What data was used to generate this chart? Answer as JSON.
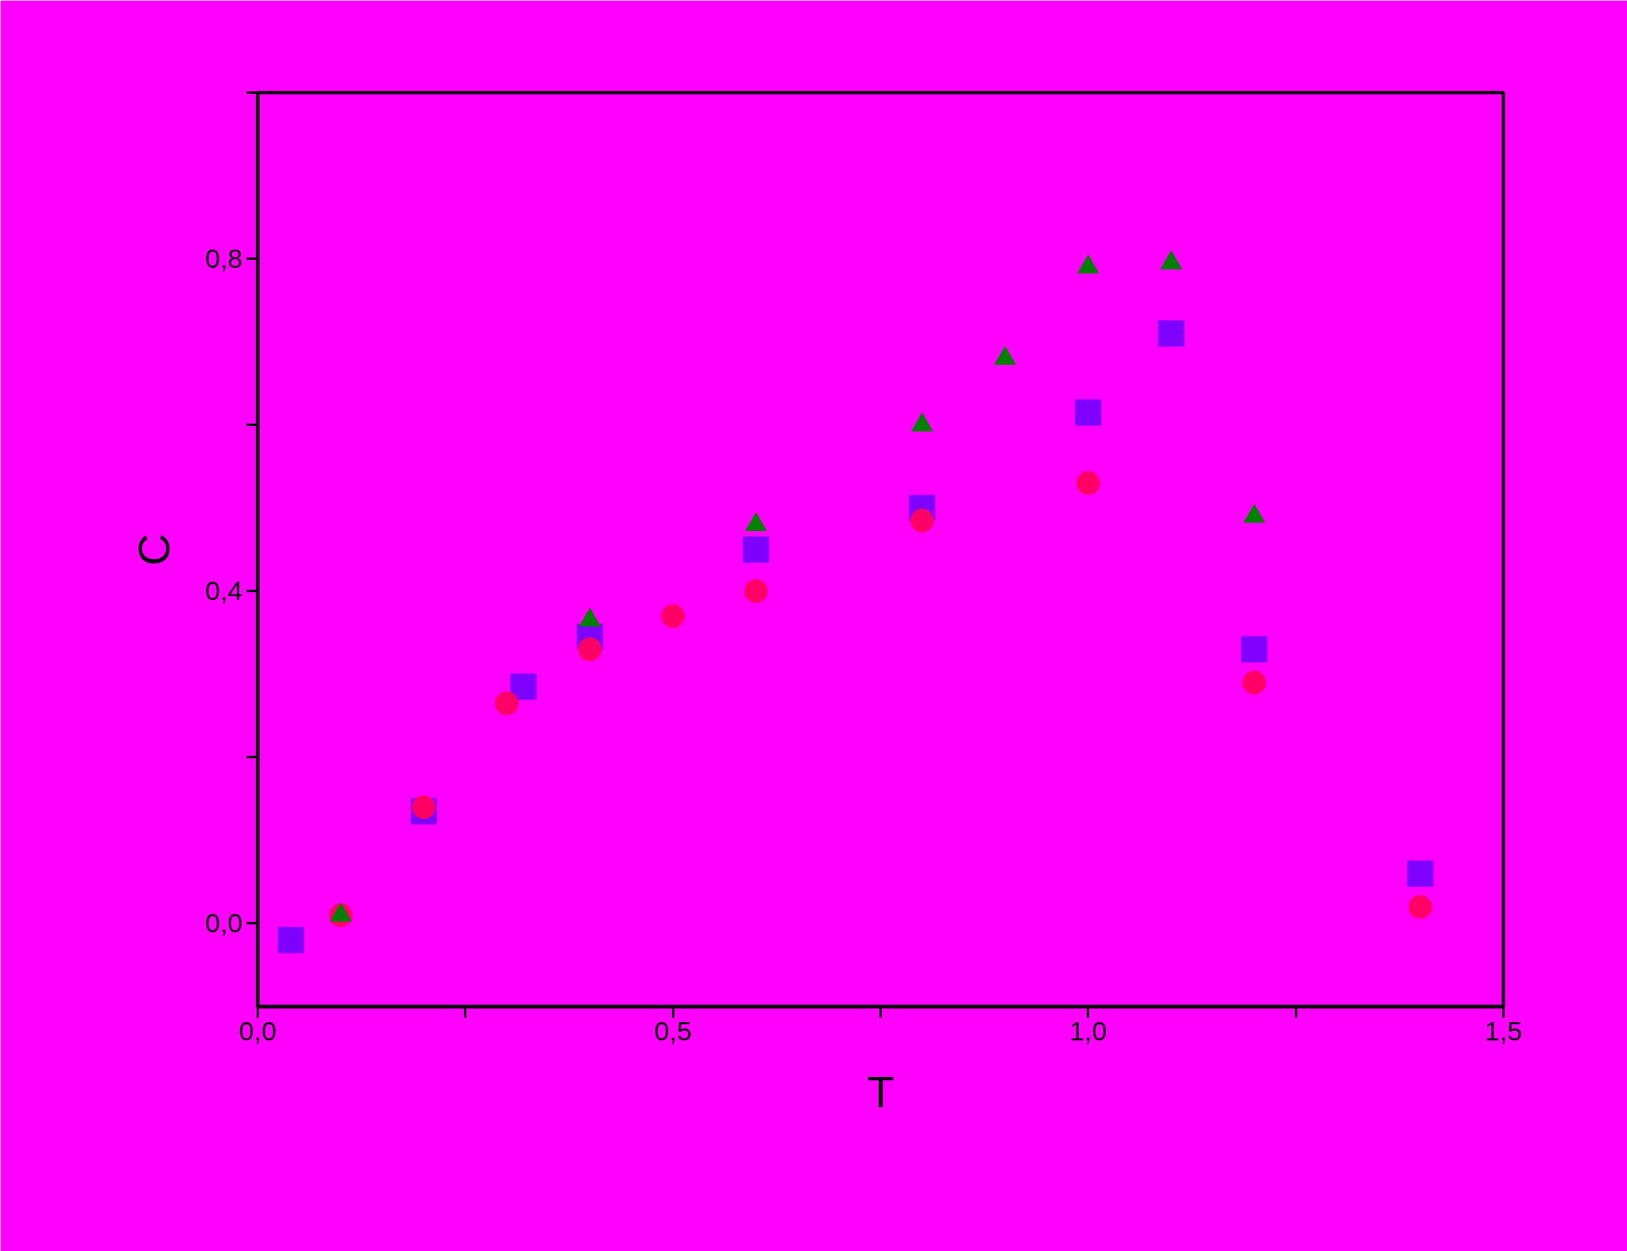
{
  "chart_data": {
    "type": "scatter",
    "xlabel": "T",
    "ylabel": "C",
    "xlim": [
      0,
      1.5
    ],
    "ylim": [
      -0.1,
      1.0
    ],
    "xticks": [
      {
        "value": 0,
        "label": "0,0"
      },
      {
        "value": 0.25,
        "label": null
      },
      {
        "value": 0.5,
        "label": "0,5"
      },
      {
        "value": 0.75,
        "label": null
      },
      {
        "value": 1.0,
        "label": "1,0"
      },
      {
        "value": 1.25,
        "label": null
      },
      {
        "value": 1.5,
        "label": "1,5"
      }
    ],
    "yticks": [
      {
        "value": 0,
        "label": "0,0"
      },
      {
        "value": 0.2,
        "label": null
      },
      {
        "value": 0.4,
        "label": "0,4"
      },
      {
        "value": 0.6,
        "label": null
      },
      {
        "value": 0.8,
        "label": "0,8"
      },
      {
        "value": 1.0,
        "label": null
      }
    ],
    "grid": false,
    "series": [
      {
        "color": "#7f00ff",
        "marker": "square",
        "x": [
          0.04,
          0.2,
          0.32,
          0.4,
          0.6,
          0.8,
          1.0,
          1.1,
          1.2,
          1.4
        ],
        "values": [
          -0.02,
          0.135,
          0.285,
          0.345,
          0.45,
          0.5,
          0.615,
          0.71,
          0.33,
          0.06
        ]
      },
      {
        "color": "#ff0066",
        "marker": "circle",
        "x": [
          0.1,
          0.2,
          0.3,
          0.4,
          0.5,
          0.6,
          0.8,
          1.0,
          1.2,
          1.4
        ],
        "values": [
          0.01,
          0.14,
          0.265,
          0.33,
          0.37,
          0.4,
          0.485,
          0.53,
          0.29,
          0.02
        ]
      },
      {
        "color": "#008000",
        "marker": "triangle",
        "x": [
          0.1,
          0.4,
          0.6,
          0.8,
          0.9,
          1.0,
          1.1,
          1.2
        ],
        "values": [
          0.01,
          0.365,
          0.48,
          0.6,
          0.68,
          0.79,
          0.795,
          0.49
        ]
      }
    ]
  }
}
